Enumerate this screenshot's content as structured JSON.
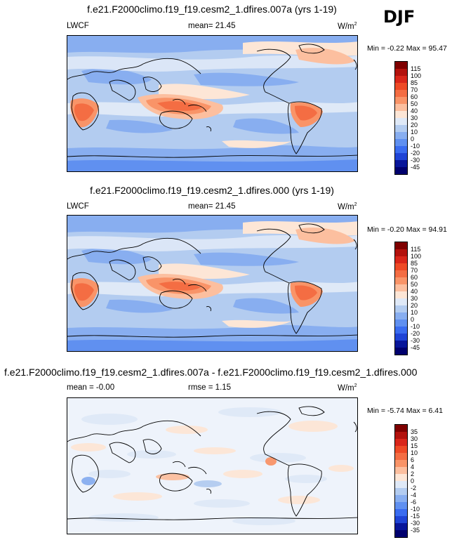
{
  "season": "DJF",
  "panels": [
    {
      "title": "f.e21.F2000climo.f19_f19.cesm2_1.dfires.007a (yrs 1-19)",
      "left": "LWCF",
      "center_label": "mean=",
      "center_value": "21.45",
      "units": "W/m",
      "units_sup": "2",
      "minmax": "Min = -0.22 Max = 95.47",
      "colorbar": {
        "labels": [
          "115",
          "100",
          "85",
          "70",
          "60",
          "50",
          "40",
          "30",
          "20",
          "10",
          "0",
          "-10",
          "-20",
          "-30",
          "-45"
        ],
        "colors": [
          "#7f0000",
          "#b3120d",
          "#d9261a",
          "#ee4a26",
          "#f46d43",
          "#f99468",
          "#fcbf9f",
          "#fde6d6",
          "#dfe9f7",
          "#b3ccf0",
          "#88aef0",
          "#6090f0",
          "#3a6cf0",
          "#1f44d6",
          "#08169a",
          "#00006e"
        ]
      }
    },
    {
      "title": "f.e21.F2000climo.f19_f19.cesm2_1.dfires.000 (yrs 1-19)",
      "left": "LWCF",
      "center_label": "mean=",
      "center_value": "21.45",
      "units": "W/m",
      "units_sup": "2",
      "minmax": "Min = -0.20 Max = 94.91",
      "colorbar": {
        "labels": [
          "115",
          "100",
          "85",
          "70",
          "60",
          "50",
          "40",
          "30",
          "20",
          "10",
          "0",
          "-10",
          "-20",
          "-30",
          "-45"
        ],
        "colors": [
          "#7f0000",
          "#b3120d",
          "#d9261a",
          "#ee4a26",
          "#f46d43",
          "#f99468",
          "#fcbf9f",
          "#fde6d6",
          "#dfe9f7",
          "#b3ccf0",
          "#88aef0",
          "#6090f0",
          "#3a6cf0",
          "#1f44d6",
          "#08169a",
          "#00006e"
        ]
      }
    },
    {
      "title": "f.e21.F2000climo.f19_f19.cesm2_1.dfires.007a - f.e21.F2000climo.f19_f19.cesm2_1.dfires.000",
      "left_label": "mean =",
      "left_value": "-0.00",
      "center_label": "rmse =",
      "center_value": "1.15",
      "units": "W/m",
      "units_sup": "2",
      "minmax": "Min = -5.74 Max =  6.41",
      "colorbar": {
        "labels": [
          "35",
          "30",
          "15",
          "10",
          "6",
          "4",
          "2",
          "0",
          "-2",
          "-4",
          "-6",
          "-10",
          "-15",
          "-30",
          "-35"
        ],
        "colors": [
          "#7f0000",
          "#b3120d",
          "#d9261a",
          "#ee4a26",
          "#f46d43",
          "#f99468",
          "#fcbf9f",
          "#fde6d6",
          "#dfe9f7",
          "#b3ccf0",
          "#88aef0",
          "#6090f0",
          "#3a6cf0",
          "#1f44d6",
          "#08169a",
          "#00006e"
        ]
      }
    }
  ]
}
